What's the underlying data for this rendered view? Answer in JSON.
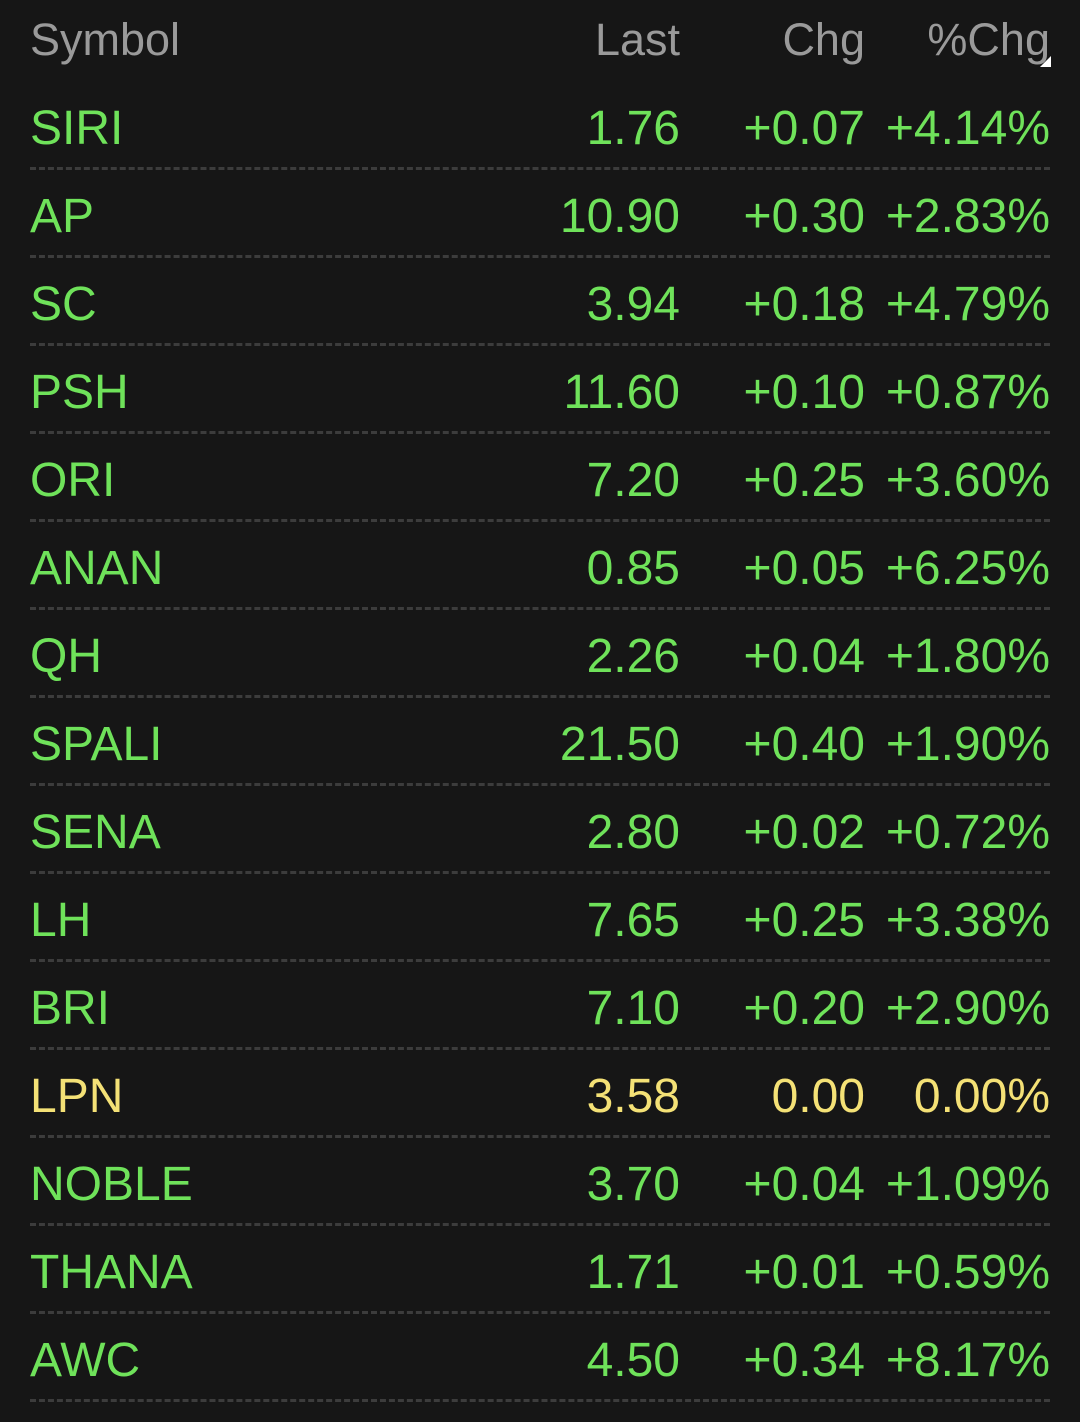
{
  "colors": {
    "background": "#161616",
    "header_text": "#9a9a9a",
    "up": "#6fe25a",
    "unchanged": "#f4e176",
    "divider": "#3c3c3c"
  },
  "header": {
    "symbol": "Symbol",
    "last": "Last",
    "chg": "Chg",
    "pct_chg": "%Chg",
    "sort_icon": "sort-corner-icon"
  },
  "rows": [
    {
      "symbol": "SIRI",
      "last": "1.76",
      "chg": "+0.07",
      "pct": "+4.14%",
      "trend": "up"
    },
    {
      "symbol": "AP",
      "last": "10.90",
      "chg": "+0.30",
      "pct": "+2.83%",
      "trend": "up"
    },
    {
      "symbol": "SC",
      "last": "3.94",
      "chg": "+0.18",
      "pct": "+4.79%",
      "trend": "up"
    },
    {
      "symbol": "PSH",
      "last": "11.60",
      "chg": "+0.10",
      "pct": "+0.87%",
      "trend": "up"
    },
    {
      "symbol": "ORI",
      "last": "7.20",
      "chg": "+0.25",
      "pct": "+3.60%",
      "trend": "up"
    },
    {
      "symbol": "ANAN",
      "last": "0.85",
      "chg": "+0.05",
      "pct": "+6.25%",
      "trend": "up"
    },
    {
      "symbol": "QH",
      "last": "2.26",
      "chg": "+0.04",
      "pct": "+1.80%",
      "trend": "up"
    },
    {
      "symbol": "SPALI",
      "last": "21.50",
      "chg": "+0.40",
      "pct": "+1.90%",
      "trend": "up"
    },
    {
      "symbol": "SENA",
      "last": "2.80",
      "chg": "+0.02",
      "pct": "+0.72%",
      "trend": "up"
    },
    {
      "symbol": "LH",
      "last": "7.65",
      "chg": "+0.25",
      "pct": "+3.38%",
      "trend": "up"
    },
    {
      "symbol": "BRI",
      "last": "7.10",
      "chg": "+0.20",
      "pct": "+2.90%",
      "trend": "up"
    },
    {
      "symbol": "LPN",
      "last": "3.58",
      "chg": "0.00",
      "pct": "0.00%",
      "trend": "flat"
    },
    {
      "symbol": "NOBLE",
      "last": "3.70",
      "chg": "+0.04",
      "pct": "+1.09%",
      "trend": "up"
    },
    {
      "symbol": "THANA",
      "last": "1.71",
      "chg": "+0.01",
      "pct": "+0.59%",
      "trend": "up"
    },
    {
      "symbol": "AWC",
      "last": "4.50",
      "chg": "+0.34",
      "pct": "+8.17%",
      "trend": "up"
    }
  ]
}
